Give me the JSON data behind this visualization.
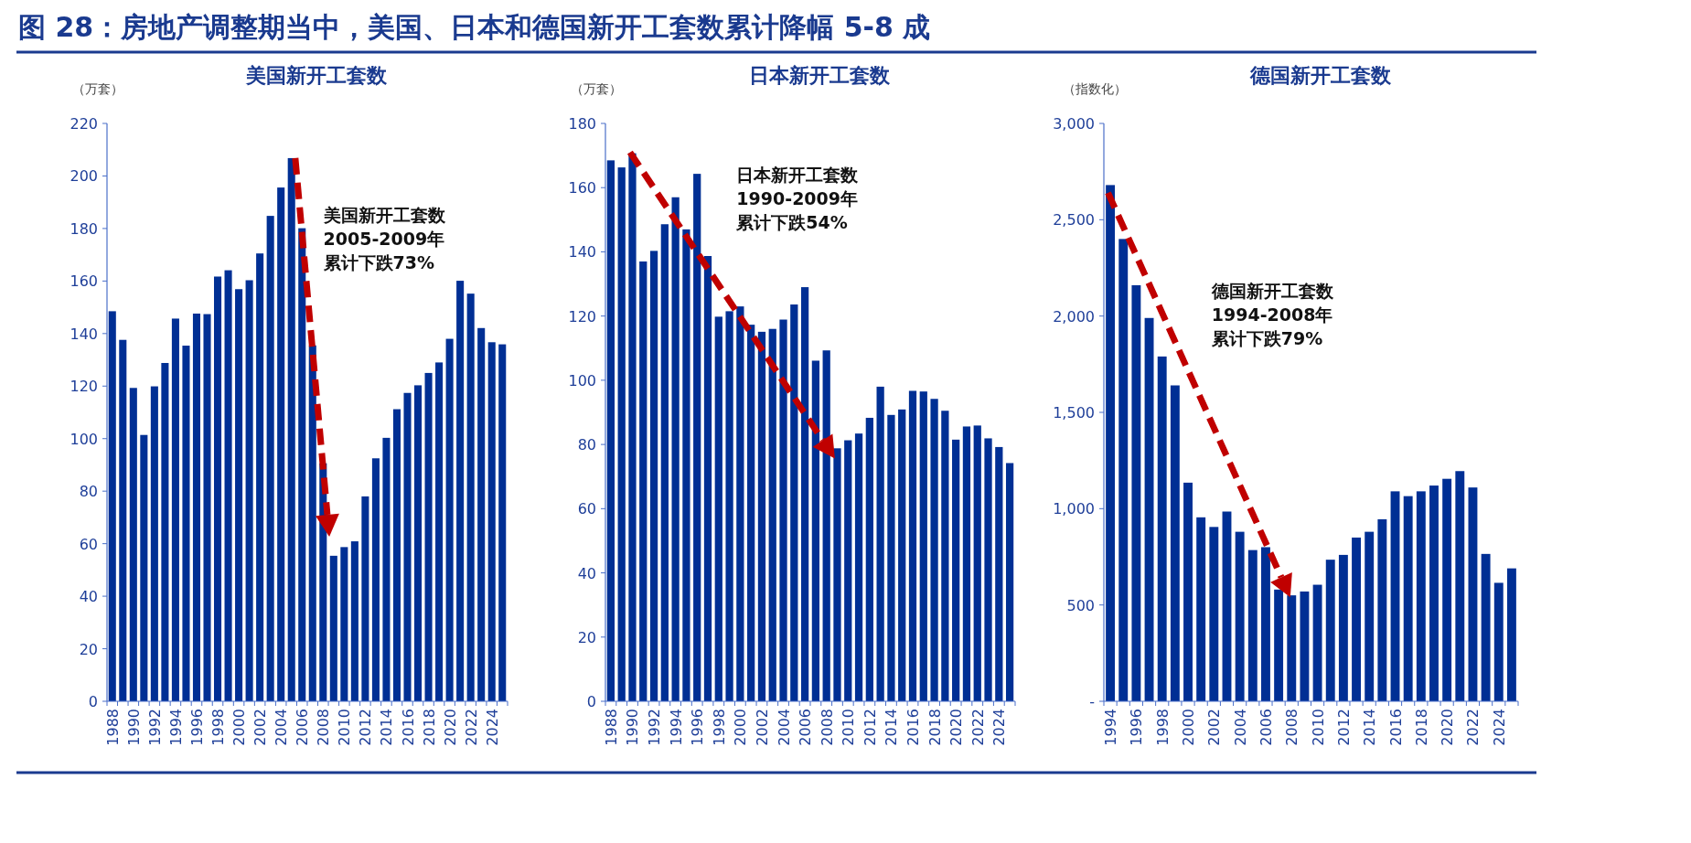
{
  "chart_data": [
    {
      "type": "bar",
      "title": "美国新开工套数",
      "ylabel": "（万套）",
      "color": "#002f94",
      "categories": [
        "1988",
        null,
        "1990",
        null,
        "1992",
        null,
        "1994",
        null,
        "1996",
        null,
        "1998",
        null,
        "2000",
        null,
        "2002",
        null,
        "2004",
        null,
        "2006",
        null,
        "2008",
        null,
        "2010",
        null,
        "2012",
        null,
        "2014",
        null,
        "2016",
        null,
        "2018",
        null,
        "2020",
        null,
        "2022",
        null,
        "2024",
        null
      ],
      "values": [
        148.5,
        137.6,
        119.3,
        101.4,
        119.9,
        128.8,
        145.7,
        135.4,
        147.6,
        147.4,
        161.7,
        164.1,
        156.9,
        160.3,
        170.5,
        184.8,
        195.6,
        206.8,
        180.1,
        135.5,
        90.6,
        55.4,
        58.7,
        60.9,
        78.0,
        92.5,
        100.3,
        111.2,
        117.4,
        120.3,
        125.0,
        129.0,
        138.0,
        160.1,
        155.2,
        142.1,
        136.7,
        135.9
      ],
      "ylim": [
        0,
        220
      ],
      "yticks": [
        0,
        20,
        40,
        60,
        80,
        100,
        120,
        140,
        160,
        180,
        200,
        220
      ],
      "annotations": [
        "图 28：房地产调整期当中，美国、日本和德国新开工套数累计降幅 5-8 成",
        "美国新开工套数",
        "2005-2009年",
        "累计下跌73%"
      ]
    },
    {
      "type": "bar",
      "title": "日本新开工套数",
      "ylabel": "（万套）",
      "color": "#002f94",
      "categories": [
        "1988",
        null,
        "1990",
        null,
        "1992",
        null,
        "1994",
        null,
        "1996",
        null,
        "1998",
        null,
        "2000",
        null,
        "2002",
        null,
        "2004",
        null,
        "2006",
        null,
        "2008",
        null,
        "2010",
        null,
        "2012",
        null,
        "2014",
        null,
        "2016",
        null,
        "2018",
        null,
        "2020",
        null,
        "2022",
        null,
        "2024",
        null
      ],
      "values": [
        168.5,
        166.3,
        170.7,
        137.0,
        140.3,
        148.6,
        157.0,
        147.0,
        164.3,
        138.7,
        119.8,
        121.5,
        123.0,
        117.3,
        115.1,
        116.0,
        118.9,
        123.6,
        129.0,
        106.1,
        109.3,
        78.8,
        81.3,
        83.4,
        88.3,
        98.0,
        89.2,
        90.9,
        96.7,
        96.5,
        94.2,
        90.5,
        81.5,
        85.6,
        85.9,
        81.9,
        79.2,
        74.2
      ],
      "ylim": [
        0,
        180
      ],
      "yticks": [
        0,
        20,
        40,
        60,
        80,
        100,
        120,
        140,
        160,
        180
      ],
      "annotations": [
        "日本新开工套数",
        "1990-2009年",
        "累计下跌54%"
      ]
    },
    {
      "type": "bar",
      "title": "德国新开工套数",
      "ylabel": "（指数化）",
      "color": "#002f94",
      "categories": [
        "1994",
        null,
        "1996",
        null,
        "1998",
        null,
        "2000",
        null,
        "2002",
        null,
        "2004",
        null,
        "2006",
        null,
        "2008",
        null,
        "2010",
        null,
        "2012",
        null,
        "2014",
        null,
        "2016",
        null,
        "2018",
        null,
        "2020",
        null,
        "2022",
        null,
        "2024",
        null
      ],
      "values": [
        2680,
        2400,
        2160,
        1990,
        1790,
        1640,
        1135,
        955,
        905,
        985,
        880,
        785,
        800,
        580,
        550,
        570,
        605,
        735,
        760,
        850,
        880,
        945,
        1090,
        1065,
        1090,
        1120,
        1155,
        1195,
        1110,
        765,
        615,
        690
      ],
      "ylim": [
        0,
        3000
      ],
      "yticks": [
        {
          "value": 0,
          "label": "-"
        },
        {
          "value": 500,
          "label": "500"
        },
        {
          "value": 1000,
          "label": "1,000"
        },
        {
          "value": 1500,
          "label": "1,500"
        },
        {
          "value": 2000,
          "label": "2,000"
        },
        {
          "value": 2500,
          "label": "2,500"
        },
        {
          "value": 3000,
          "label": "3,000"
        }
      ],
      "annotations": [
        "德国新开工套数",
        "1994-2008年",
        "累计下跌79%"
      ]
    }
  ]
}
